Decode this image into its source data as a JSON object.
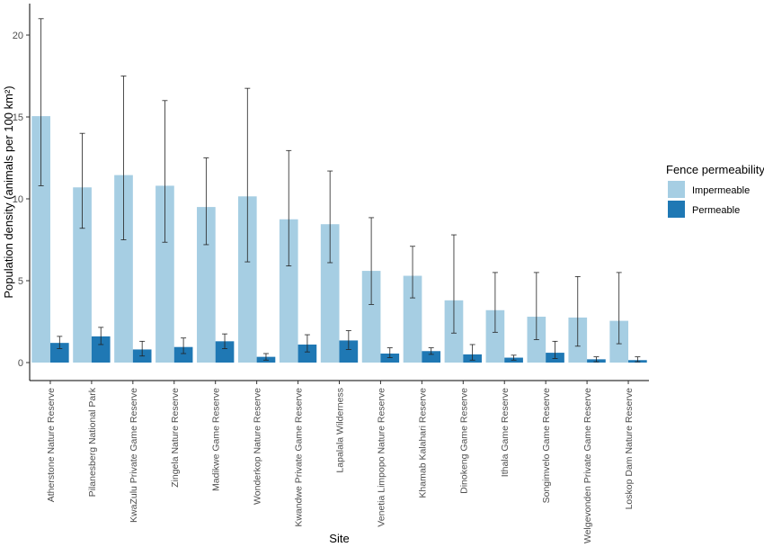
{
  "chart_data": {
    "type": "bar",
    "xlabel": "Site",
    "ylabel": "Population density (animals per 100 km²)",
    "ylim": [
      0,
      21.5
    ],
    "yticks": [
      0,
      5,
      10,
      15,
      20
    ],
    "grid": false,
    "legend": {
      "title": "Fence permeability",
      "position": "right"
    },
    "categories": [
      "Atherstone Nature Reserve",
      "Pilanesberg National Park",
      "KwaZulu Private Game Reserve",
      "Zingela  Nature Reserve",
      "Madikwe Game Reserve",
      "Wonderkop Nature Reserve",
      "Kwandwe Private Game Reserve",
      "Lapalala Wilderness",
      "Venetia Limpopo Nature Reserve",
      "Khamab Kalahari Reserve",
      "Dinokeng Game Reserve",
      "Ithala Game Reserve",
      "Songimvelo Game Reserve",
      "Welgevonden Private Game Reserve",
      "Loskop Dam Nature Reserve"
    ],
    "series": [
      {
        "name": "Impermeable",
        "color": "#a6cee3",
        "values": [
          15.05,
          10.7,
          11.45,
          10.8,
          9.5,
          10.15,
          8.75,
          8.45,
          5.6,
          5.3,
          3.8,
          3.2,
          2.8,
          2.75,
          2.55
        ],
        "error_low": [
          10.8,
          8.2,
          7.5,
          7.35,
          7.2,
          6.15,
          5.9,
          6.1,
          3.55,
          3.95,
          1.8,
          1.85,
          1.4,
          1.0,
          1.15
        ],
        "error_high": [
          21.0,
          14.0,
          17.5,
          16.0,
          12.5,
          16.75,
          12.95,
          11.7,
          8.85,
          7.1,
          7.8,
          5.5,
          5.5,
          5.25,
          5.5
        ]
      },
      {
        "name": "Permeable",
        "color": "#1f78b4",
        "values": [
          1.2,
          1.6,
          0.8,
          0.95,
          1.3,
          0.35,
          1.1,
          1.35,
          0.55,
          0.7,
          0.5,
          0.3,
          0.6,
          0.2,
          0.15
        ],
        "error_low": [
          0.85,
          1.1,
          0.4,
          0.55,
          0.85,
          0.15,
          0.65,
          0.8,
          0.3,
          0.5,
          0.15,
          0.15,
          0.25,
          0.05,
          0.05
        ],
        "error_high": [
          1.6,
          2.15,
          1.3,
          1.5,
          1.75,
          0.55,
          1.7,
          1.95,
          0.9,
          0.9,
          1.1,
          0.45,
          1.3,
          0.35,
          0.35
        ]
      }
    ]
  }
}
